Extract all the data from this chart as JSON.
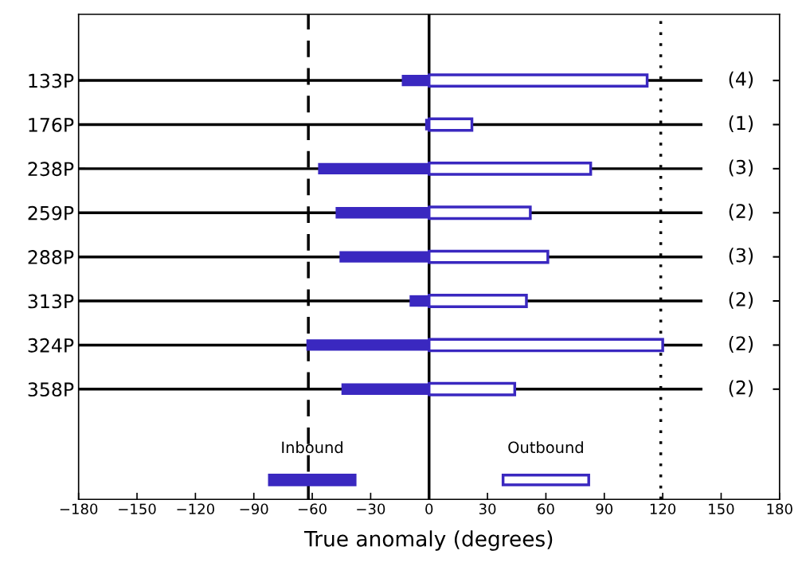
{
  "chart_data": {
    "type": "bar",
    "orientation": "horizontal",
    "xlabel": "True anomaly (degrees)",
    "categories": [
      "133P",
      "176P",
      "238P",
      "259P",
      "288P",
      "313P",
      "324P",
      "358P"
    ],
    "series": [
      {
        "name": "Inbound",
        "color": "#3a28c0",
        "values": [
          -14,
          -2,
          -57,
          -48,
          -46,
          -10,
          -63,
          -45
        ]
      },
      {
        "name": "Outbound",
        "color": "#3a28c0",
        "values": [
          112,
          22,
          83,
          52,
          61,
          50,
          120,
          44
        ]
      }
    ],
    "xlim": [
      -180,
      180
    ],
    "xticks": [
      {
        "value": -180,
        "label": "−180"
      },
      {
        "value": -150,
        "label": "−150"
      },
      {
        "value": -120,
        "label": "−120"
      },
      {
        "value": -90,
        "label": "−90"
      },
      {
        "value": -60,
        "label": "−60"
      },
      {
        "value": -30,
        "label": "−30"
      },
      0,
      30,
      60,
      90,
      120,
      150,
      180
    ],
    "ref_lines": [
      {
        "axis": "x",
        "value": -62,
        "color": "#000000",
        "line_style": "dashed"
      },
      {
        "axis": "x",
        "value": 0,
        "color": "#000000",
        "line_style": "solid"
      },
      {
        "axis": "x",
        "value": 119,
        "color": "#000000",
        "line_style": "dotted"
      }
    ],
    "annotations": [
      "(4)",
      "(1)",
      "(3)",
      "(2)",
      "(3)",
      "(2)",
      "(2)",
      "(2)"
    ],
    "grid": "y",
    "legend": "bottom",
    "stacked": true
  }
}
